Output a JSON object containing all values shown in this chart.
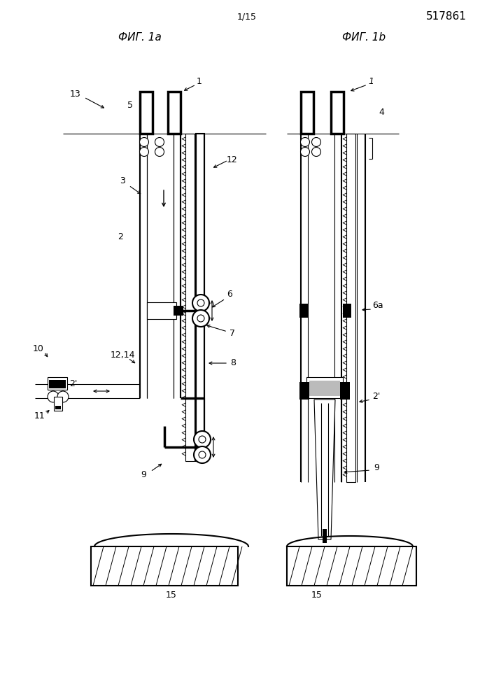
{
  "title_left": "ФИГ. 1a",
  "title_right": "ФИГ. 1b",
  "page_num": "1/15",
  "patent_num": "517861",
  "bg_color": "#ffffff",
  "lc": "#000000",
  "fig_title_fs": 11,
  "label_fs": 9,
  "header_fs": 9,
  "patent_fs": 11
}
